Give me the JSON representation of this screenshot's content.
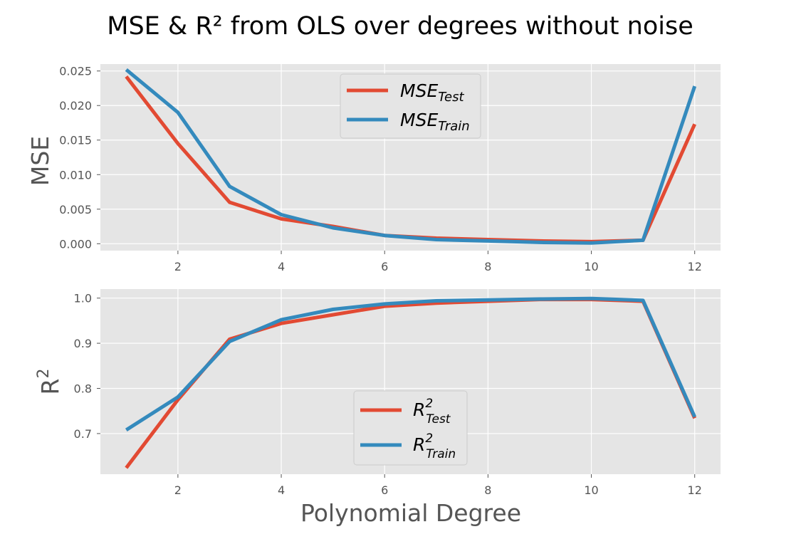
{
  "title": "MSE & R² from OLS over degrees without noise",
  "xlabel": "Polynomial Degree",
  "colors": {
    "test": "#E24A33",
    "train": "#348ABD",
    "panel_bg": "#E5E5E5",
    "grid": "#FFFFFF",
    "text": "#555555"
  },
  "chart_data": [
    {
      "type": "line",
      "ylabel": "MSE",
      "x": [
        1,
        2,
        3,
        4,
        5,
        6,
        7,
        8,
        9,
        10,
        11,
        12
      ],
      "xlim": [
        0.5,
        12.5
      ],
      "ylim": [
        -0.001,
        0.026
      ],
      "xticks": [
        2,
        4,
        6,
        8,
        10,
        12
      ],
      "yticks": [
        0.0,
        0.005,
        0.01,
        0.015,
        0.02,
        0.025
      ],
      "ytick_labels": [
        "0.000",
        "0.005",
        "0.010",
        "0.015",
        "0.020",
        "0.025"
      ],
      "grid": true,
      "legend_position": "top-center",
      "series": [
        {
          "name": "MSE_Test",
          "key": "test",
          "values": [
            0.0242,
            0.0145,
            0.006,
            0.0036,
            0.0025,
            0.0012,
            0.0008,
            0.0006,
            0.0004,
            0.0003,
            0.0005,
            0.0173
          ]
        },
        {
          "name": "MSE_Train",
          "key": "train",
          "values": [
            0.0252,
            0.019,
            0.0083,
            0.0042,
            0.0023,
            0.0012,
            0.0006,
            0.0004,
            0.0002,
            0.0001,
            0.0005,
            0.0228
          ]
        }
      ]
    },
    {
      "type": "line",
      "ylabel": "R²",
      "x": [
        1,
        2,
        3,
        4,
        5,
        6,
        7,
        8,
        9,
        10,
        11,
        12
      ],
      "xlim": [
        0.5,
        12.5
      ],
      "ylim": [
        0.61,
        1.02
      ],
      "xticks": [
        2,
        4,
        6,
        8,
        10,
        12
      ],
      "yticks": [
        0.7,
        0.8,
        0.9,
        1.0
      ],
      "ytick_labels": [
        "0.7",
        "0.8",
        "0.9",
        "1.0"
      ],
      "grid": true,
      "legend_position": "bottom-center",
      "series": [
        {
          "name": "R²_Test",
          "key": "test",
          "values": [
            0.624,
            0.775,
            0.909,
            0.944,
            0.963,
            0.982,
            0.989,
            0.993,
            0.997,
            0.997,
            0.993,
            0.734
          ]
        },
        {
          "name": "R²_Train",
          "key": "train",
          "values": [
            0.708,
            0.781,
            0.904,
            0.952,
            0.975,
            0.987,
            0.994,
            0.996,
            0.998,
            0.999,
            0.995,
            0.737
          ]
        }
      ]
    }
  ]
}
